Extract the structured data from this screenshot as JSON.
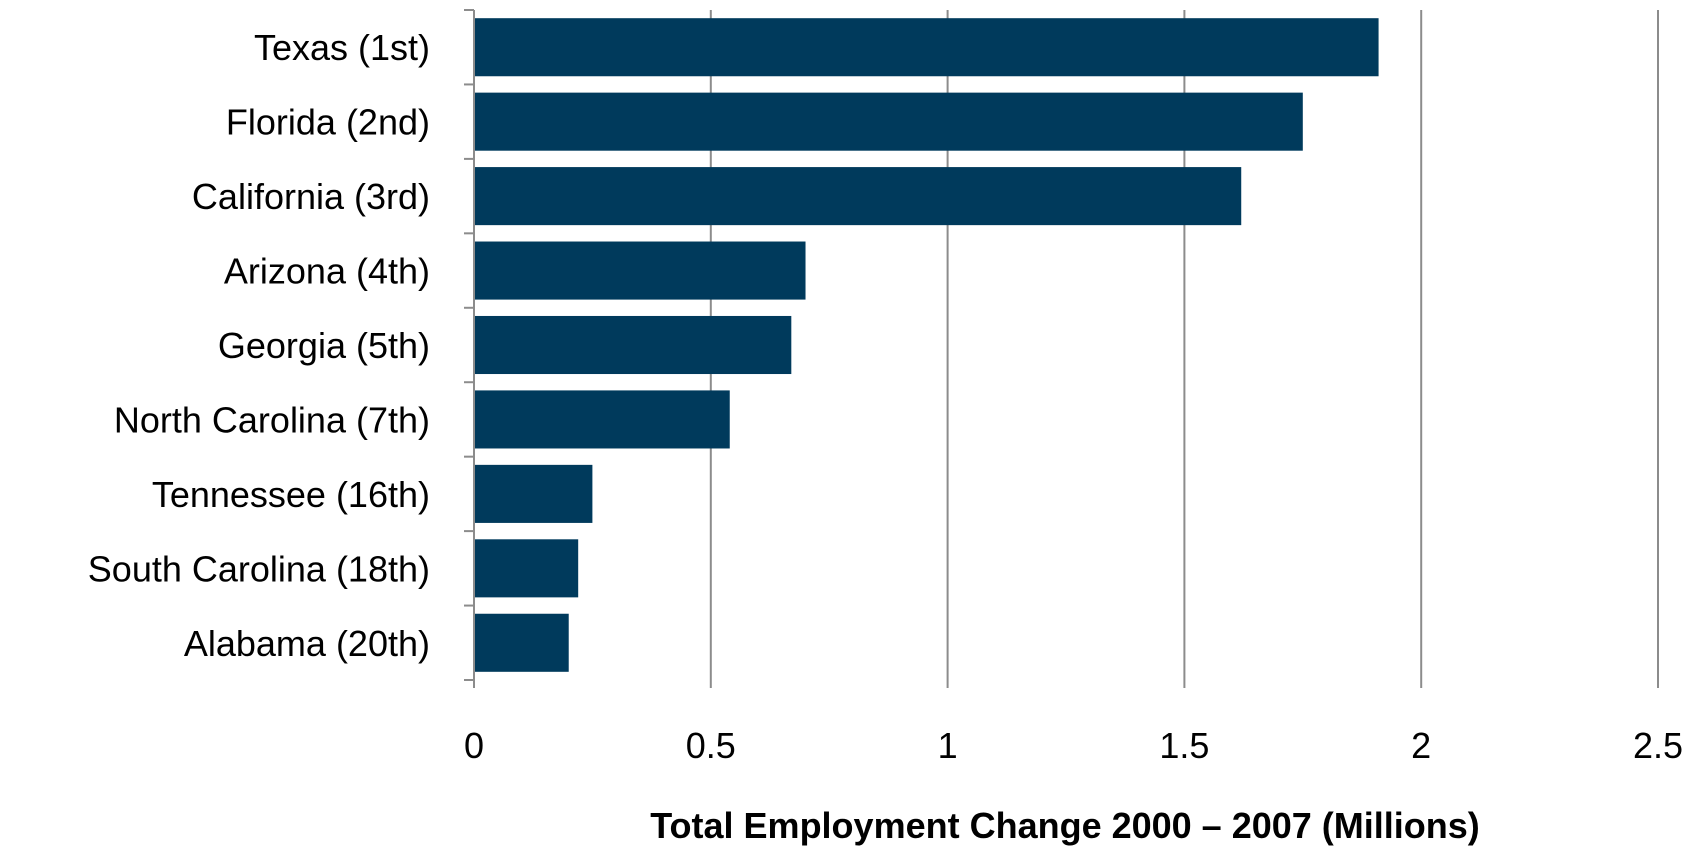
{
  "chart_data": {
    "type": "bar",
    "orientation": "horizontal",
    "categories": [
      "Texas (1st)",
      "Florida (2nd)",
      "California (3rd)",
      "Arizona (4th)",
      "Georgia (5th)",
      "North Carolina (7th)",
      "Tennessee (16th)",
      "South Carolina (18th)",
      "Alabama (20th)"
    ],
    "values": [
      1.91,
      1.75,
      1.62,
      0.7,
      0.67,
      0.54,
      0.25,
      0.22,
      0.2
    ],
    "title": "",
    "xlabel": "Total Employment Change 2000 – 2007 (Millions)",
    "ylabel": "",
    "xlim": [
      0,
      2.5
    ],
    "xticks": [
      "0",
      "0.5",
      "1",
      "1.5",
      "2",
      "2.5"
    ],
    "grid": "vertical",
    "legend": "none",
    "bar_color": "#003a5c",
    "grid_color": "#8c8c8c"
  }
}
